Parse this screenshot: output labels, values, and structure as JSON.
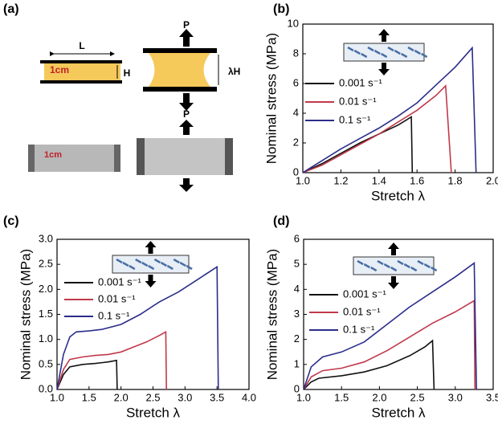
{
  "schematic": {
    "label": "(a)",
    "texts": [
      "L",
      "1cm",
      "H",
      "P",
      "λH",
      "P",
      "1cm"
    ]
  },
  "chart_data": [
    {
      "type": "line",
      "label": "(b)",
      "xlabel": "Stretch λ",
      "ylabel": "Nominal stress (MPa)",
      "xlim": [
        1,
        2
      ],
      "xticks": [
        {
          "value": 1,
          "label": "1.0"
        },
        1.2,
        1.4,
        1.6,
        1.8,
        {
          "value": 2,
          "label": "2.0"
        }
      ],
      "ylim": [
        0,
        10
      ],
      "yticks": [
        0,
        2,
        4,
        6,
        8,
        10
      ],
      "series": [
        {
          "name": "0.001 s⁻¹",
          "color": "#111111",
          "x": [
            1,
            1.1,
            1.2,
            1.3,
            1.4,
            1.5,
            1.57,
            1.575
          ],
          "values": [
            0,
            0.6,
            1.3,
            2.0,
            2.6,
            3.2,
            3.75,
            0
          ]
        },
        {
          "name": "0.01 s⁻¹",
          "color": "#c0394a",
          "x": [
            1,
            1.1,
            1.2,
            1.3,
            1.4,
            1.5,
            1.6,
            1.7,
            1.75,
            1.78
          ],
          "values": [
            0,
            0.5,
            1.2,
            1.9,
            2.6,
            3.4,
            4.2,
            5.2,
            5.85,
            0
          ]
        },
        {
          "name": "0.1 s⁻¹",
          "color": "#2b2d8a",
          "x": [
            1,
            1.1,
            1.2,
            1.3,
            1.4,
            1.5,
            1.6,
            1.7,
            1.8,
            1.89,
            1.91
          ],
          "values": [
            0,
            0.8,
            1.6,
            2.3,
            3.0,
            3.8,
            4.7,
            5.9,
            7.1,
            8.4,
            0
          ]
        }
      ]
    },
    {
      "type": "line",
      "label": "(c)",
      "xlabel": "Stretch λ",
      "ylabel": "Nominal stress (MPa)",
      "xlim": [
        1,
        4
      ],
      "xticks": [
        {
          "value": 1,
          "label": "1.0"
        },
        1.5,
        {
          "value": 2,
          "label": "2.0"
        },
        2.5,
        {
          "value": 3,
          "label": "3.0"
        },
        3.5,
        {
          "value": 4,
          "label": "4.0"
        }
      ],
      "ylim": [
        0,
        3
      ],
      "yticks": [
        {
          "value": 0,
          "label": "0.0"
        },
        0.5,
        {
          "value": 1,
          "label": "1.0"
        },
        1.5,
        {
          "value": 2,
          "label": "2.0"
        },
        2.5,
        {
          "value": 3,
          "label": "3.0"
        }
      ],
      "series": [
        {
          "name": "0.001 s⁻¹",
          "color": "#111111",
          "x": [
            1,
            1.1,
            1.2,
            1.4,
            1.6,
            1.8,
            1.93,
            1.94
          ],
          "values": [
            0,
            0.3,
            0.45,
            0.5,
            0.52,
            0.55,
            0.58,
            0
          ]
        },
        {
          "name": "0.01 s⁻¹",
          "color": "#c0394a",
          "x": [
            1,
            1.1,
            1.2,
            1.4,
            1.6,
            1.8,
            2.0,
            2.2,
            2.4,
            2.6,
            2.7,
            2.71
          ],
          "values": [
            0,
            0.4,
            0.6,
            0.65,
            0.68,
            0.7,
            0.75,
            0.85,
            0.95,
            1.08,
            1.15,
            0
          ]
        },
        {
          "name": "0.1 s⁻¹",
          "color": "#2b2d8a",
          "x": [
            1,
            1.1,
            1.2,
            1.3,
            1.5,
            1.7,
            2.0,
            2.3,
            2.6,
            2.9,
            3.2,
            3.5,
            3.52
          ],
          "values": [
            0,
            0.7,
            1.05,
            1.15,
            1.17,
            1.2,
            1.3,
            1.5,
            1.75,
            1.95,
            2.2,
            2.45,
            0
          ]
        }
      ]
    },
    {
      "type": "line",
      "label": "(d)",
      "xlabel": "Stretch λ",
      "ylabel": "Nominal stress (MPa)",
      "xlim": [
        1,
        3.5
      ],
      "xticks": [
        {
          "value": 1,
          "label": "1.0"
        },
        1.5,
        {
          "value": 2,
          "label": "2.0"
        },
        2.5,
        {
          "value": 3,
          "label": "3.0"
        },
        3.5
      ],
      "ylim": [
        0,
        6
      ],
      "yticks": [
        0,
        1,
        2,
        3,
        4,
        5,
        6
      ],
      "series": [
        {
          "name": "0.001 s⁻¹",
          "color": "#111111",
          "x": [
            1,
            1.1,
            1.2,
            1.5,
            1.8,
            2.1,
            2.4,
            2.6,
            2.7,
            2.72
          ],
          "values": [
            0,
            0.3,
            0.45,
            0.55,
            0.7,
            0.95,
            1.35,
            1.7,
            1.95,
            0
          ]
        },
        {
          "name": "0.01 s⁻¹",
          "color": "#c0394a",
          "x": [
            1,
            1.1,
            1.25,
            1.5,
            1.8,
            2.1,
            2.4,
            2.7,
            3.0,
            3.25,
            3.26
          ],
          "values": [
            0,
            0.5,
            0.75,
            0.85,
            1.1,
            1.55,
            2.1,
            2.65,
            3.1,
            3.55,
            0
          ]
        },
        {
          "name": "0.1 s⁻¹",
          "color": "#2b2d8a",
          "x": [
            1,
            1.1,
            1.25,
            1.5,
            1.8,
            2.1,
            2.4,
            2.7,
            3.0,
            3.25,
            3.28
          ],
          "values": [
            0,
            0.9,
            1.3,
            1.5,
            1.9,
            2.6,
            3.3,
            3.9,
            4.5,
            5.05,
            0
          ]
        }
      ]
    }
  ]
}
